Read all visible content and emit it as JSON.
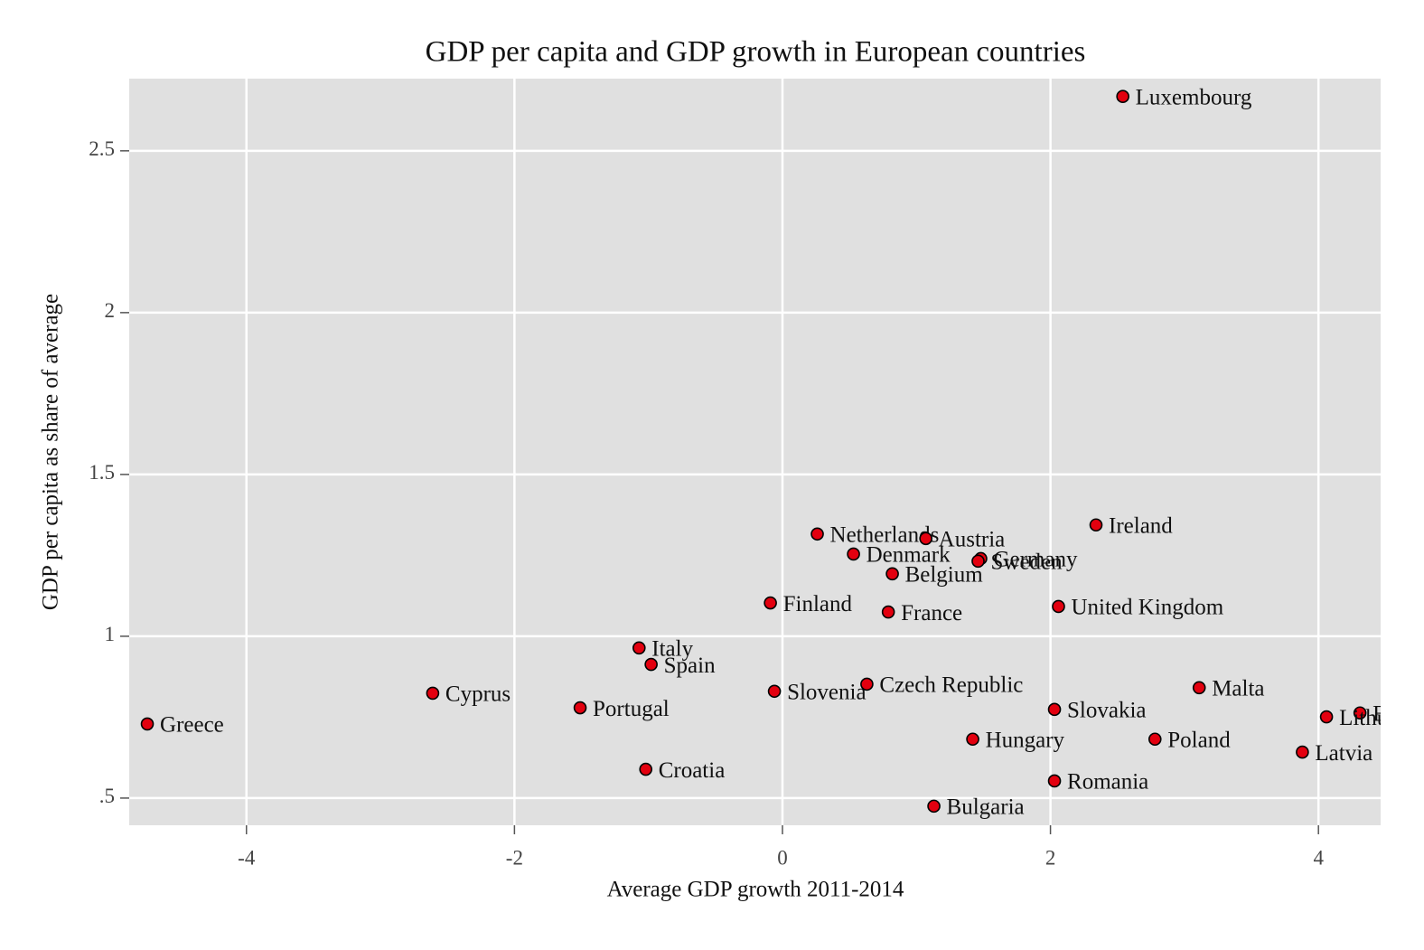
{
  "chart_data": {
    "type": "scatter",
    "title": "GDP per capita and GDP growth in European countries",
    "xlabel": "Average GDP growth 2011-2014",
    "ylabel": "GDP per capita as share of average",
    "labels": [
      "Luxembourg",
      "Ireland",
      "Netherlands",
      "Austria",
      "Denmark",
      "Germany",
      "Sweden",
      "Belgium",
      "Finland",
      "France",
      "United Kingdom",
      "Italy",
      "Spain",
      "Slovenia",
      "Czech Republic",
      "Cyprus",
      "Portugal",
      "Greece",
      "Malta",
      "Slovakia",
      "Estonia",
      "Lithuania",
      "Latvia",
      "Hungary",
      "Poland",
      "Croatia",
      "Romania",
      "Bulgaria"
    ],
    "x": [
      2.54,
      2.34,
      0.26,
      1.07,
      0.53,
      1.48,
      1.46,
      0.82,
      -0.09,
      0.79,
      2.06,
      -1.07,
      -0.98,
      -0.06,
      0.63,
      -2.61,
      -1.51,
      -4.74,
      3.11,
      2.03,
      4.31,
      4.06,
      3.88,
      1.42,
      2.78,
      -1.02,
      2.03,
      1.13
    ],
    "y": [
      2.668,
      1.344,
      1.316,
      1.302,
      1.254,
      1.24,
      1.232,
      1.193,
      1.103,
      1.075,
      1.092,
      0.964,
      0.913,
      0.83,
      0.852,
      0.824,
      0.779,
      0.729,
      0.841,
      0.774,
      0.763,
      0.751,
      0.642,
      0.682,
      0.682,
      0.589,
      0.553,
      0.475
    ],
    "color": "#e3000f",
    "xlim": [
      -4.875,
      4.464
    ],
    "ylim": [
      0.416,
      2.723
    ],
    "xticks": [
      -4,
      -2,
      0,
      2,
      4
    ],
    "yticks": [
      {
        "value": 0.5,
        "label": ".5"
      },
      1,
      1.5,
      2,
      2.5
    ],
    "grid": true
  }
}
